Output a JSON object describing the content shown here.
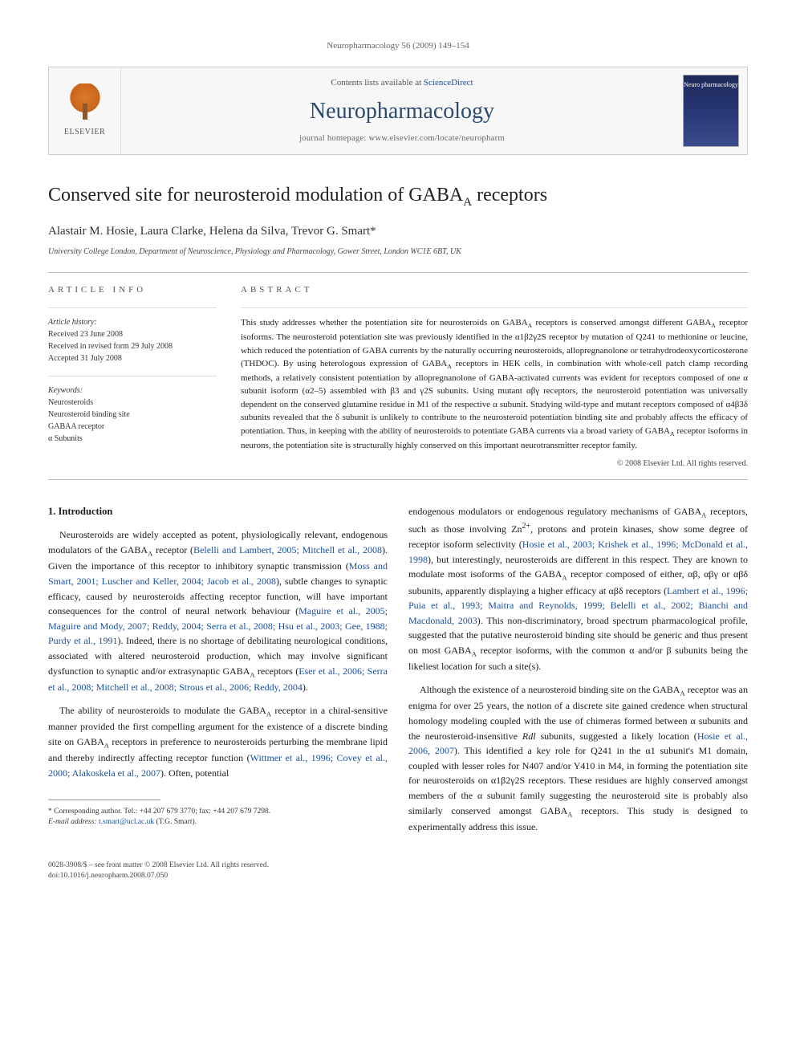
{
  "running_header": "Neuropharmacology 56 (2009) 149–154",
  "banner": {
    "publisher": "ELSEVIER",
    "contents_prefix": "Contents lists available at ",
    "contents_link": "ScienceDirect",
    "journal": "Neuropharmacology",
    "homepage_prefix": "journal homepage: ",
    "homepage_url": "www.elsevier.com/locate/neuropharm",
    "cover_label": "Neuro pharmacology"
  },
  "title_html": "Conserved site for neurosteroid modulation of GABA<sub>A</sub> receptors",
  "authors": "Alastair M. Hosie, Laura Clarke, Helena da Silva, Trevor G. Smart*",
  "affiliation": "University College London, Department of Neuroscience, Physiology and Pharmacology, Gower Street, London WC1E 6BT, UK",
  "info_heading": "ARTICLE INFO",
  "abstract_heading": "ABSTRACT",
  "history_label": "Article history:",
  "history": [
    "Received 23 June 2008",
    "Received in revised form 29 July 2008",
    "Accepted 31 July 2008"
  ],
  "keywords_label": "Keywords:",
  "keywords": [
    "Neurosteroids",
    "Neurosteroid binding site",
    "GABAA receptor",
    "α Subunits"
  ],
  "abstract_html": "This study addresses whether the potentiation site for neurosteroids on GABA<sub>A</sub> receptors is conserved amongst different GABA<sub>A</sub> receptor isoforms. The neurosteroid potentiation site was previously identified in the α1β2γ2S receptor by mutation of Q241 to methionine or leucine, which reduced the potentiation of GABA currents by the naturally occurring neurosteroids, allopregnanolone or tetrahydrodeoxycorticosterone (THDOC). By using heterologous expression of GABA<sub>A</sub> receptors in HEK cells, in combination with whole-cell patch clamp recording methods, a relatively consistent potentiation by allopregnanolone of GABA-activated currents was evident for receptors composed of one α subunit isoform (α2–5) assembled with β3 and γ2S subunits. Using mutant αβγ receptors, the neurosteroid potentiation was universally dependent on the conserved glutamine residue in M1 of the respective α subunit. Studying wild-type and mutant receptors composed of α4β3δ subunits revealed that the δ subunit is unlikely to contribute to the neurosteroid potentiation binding site and probably affects the efficacy of potentiation. Thus, in keeping with the ability of neurosteroids to potentiate GABA currents via a broad variety of GABA<sub>A</sub> receptor isoforms in neurons, the potentiation site is structurally highly conserved on this important neurotransmitter receptor family.",
  "copyright": "© 2008 Elsevier Ltd. All rights reserved.",
  "section1_heading": "1. Introduction",
  "col1_p1_html": "Neurosteroids are widely accepted as potent, physiologically relevant, endogenous modulators of the GABA<sub>A</sub> receptor (<span class=\"ref\">Belelli and Lambert, 2005; Mitchell et al., 2008</span>). Given the importance of this receptor to inhibitory synaptic transmission (<span class=\"ref\">Moss and Smart, 2001; Luscher and Keller, 2004; Jacob et al., 2008</span>), subtle changes to synaptic efficacy, caused by neurosteroids affecting receptor function, will have important consequences for the control of neural network behaviour (<span class=\"ref\">Maguire et al., 2005; Maguire and Mody, 2007; Reddy, 2004; Serra et al., 2008; Hsu et al., 2003; Gee, 1988; Purdy et al., 1991</span>). Indeed, there is no shortage of debilitating neurological conditions, associated with altered neurosteroid production, which may involve significant dysfunction to synaptic and/or extrasynaptic GABA<sub>A</sub> receptors (<span class=\"ref\">Eser et al., 2006; Serra et al., 2008; Mitchell et al., 2008; Strous et al., 2006; Reddy, 2004</span>).",
  "col1_p2_html": "The ability of neurosteroids to modulate the GABA<sub>A</sub> receptor in a chiral-sensitive manner provided the first compelling argument for the existence of a discrete binding site on GABA<sub>A</sub> receptors in preference to neurosteroids perturbing the membrane lipid and thereby indirectly affecting receptor function (<span class=\"ref\">Wittmer et al., 1996; Covey et al., 2000; Alakoskela et al., 2007</span>). Often, potential",
  "col2_p1_html": "endogenous modulators or endogenous regulatory mechanisms of GABA<sub>A</sub> receptors, such as those involving Zn<sup>2+</sup>, protons and protein kinases, show some degree of receptor isoform selectivity (<span class=\"ref\">Hosie et al., 2003; Krishek et al., 1996; McDonald et al., 1998</span>), but interestingly, neurosteroids are different in this respect. They are known to modulate most isoforms of the GABA<sub>A</sub> receptor composed of either, αβ, αβγ or αβδ subunits, apparently displaying a higher efficacy at αβδ receptors (<span class=\"ref\">Lambert et al., 1996; Puia et al., 1993; Maitra and Reynolds, 1999; Belelli et al., 2002; Bianchi and Macdonald, 2003</span>). This non-discriminatory, broad spectrum pharmacological profile, suggested that the putative neurosteroid binding site should be generic and thus present on most GABA<sub>A</sub> receptor isoforms, with the common α and/or β subunits being the likeliest location for such a site(s).",
  "col2_p2_html": "Although the existence of a neurosteroid binding site on the GABA<sub>A</sub> receptor was an enigma for over 25 years, the notion of a discrete site gained credence when structural homology modeling coupled with the use of chimeras formed between α subunits and the neurosteroid-insensitive <i>Rdl</i> subunits, suggested a likely location (<span class=\"ref\">Hosie et al., 2006, 2007</span>). This identified a key role for Q241 in the α1 subunit's M1 domain, coupled with lesser roles for N407 and/or Y410 in M4, in forming the potentiation site for neurosteroids on α1β2γ2S receptors. These residues are highly conserved amongst members of the α subunit family suggesting the neurosteroid site is probably also similarly conserved amongst GABA<sub>A</sub> receptors. This study is designed to experimentally address this issue.",
  "footnote_corr": "* Corresponding author. Tel.: +44 207 679 3770; fax: +44 207 679 7298.",
  "footnote_email_label": "E-mail address:",
  "footnote_email": "t.smart@ucl.ac.uk",
  "footnote_email_suffix": "(T.G. Smart).",
  "footer_left_1": "0028-3908/$ – see front matter © 2008 Elsevier Ltd. All rights reserved.",
  "footer_left_2": "doi:10.1016/j.neuropharm.2008.07.050"
}
